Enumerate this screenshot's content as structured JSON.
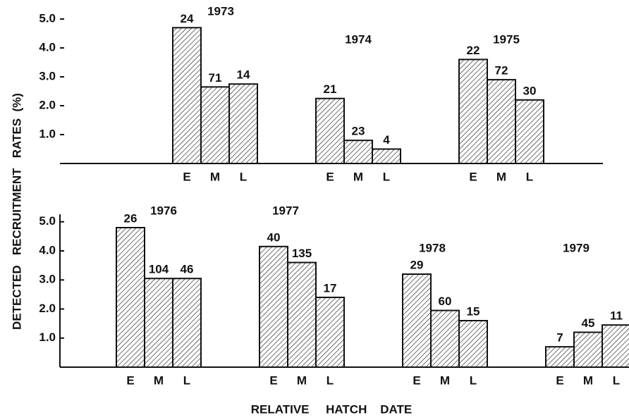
{
  "ylabel": "DETECTED   RECRUITMENT   RATES  (%)",
  "xlabel": "RELATIVE     HATCH    DATE",
  "chart_data": [
    {
      "type": "bar",
      "ylim": [
        0,
        5.5
      ],
      "yticks": [
        {
          "value": 1,
          "label": "1.0"
        },
        {
          "value": 2,
          "label": "2.0"
        },
        {
          "value": 3,
          "label": "3.0"
        },
        {
          "value": 4,
          "label": "4.0"
        },
        {
          "value": 5,
          "label": "5.0"
        }
      ],
      "categories": [
        "E",
        "M",
        "L"
      ],
      "groups": [
        {
          "label": "1973",
          "values": [
            4.7,
            2.65,
            2.75
          ],
          "n": [
            24,
            71,
            14
          ]
        },
        {
          "label": "1974",
          "values": [
            2.25,
            0.8,
            0.5
          ],
          "n": [
            21,
            23,
            4
          ]
        },
        {
          "label": "1975",
          "values": [
            3.6,
            2.9,
            2.2
          ],
          "n": [
            22,
            72,
            30
          ]
        }
      ]
    },
    {
      "type": "bar",
      "ylim": [
        0,
        5.5
      ],
      "yticks": [
        {
          "value": 1,
          "label": "1.0"
        },
        {
          "value": 2,
          "label": "2.0"
        },
        {
          "value": 3,
          "label": "3.0"
        },
        {
          "value": 4,
          "label": "4.0"
        },
        {
          "value": 5,
          "label": "5.0"
        }
      ],
      "categories": [
        "E",
        "M",
        "L"
      ],
      "groups": [
        {
          "label": "1976",
          "values": [
            4.8,
            3.05,
            3.05
          ],
          "n": [
            26,
            104,
            46
          ]
        },
        {
          "label": "1977",
          "values": [
            4.15,
            3.6,
            2.4
          ],
          "n": [
            40,
            135,
            17
          ]
        },
        {
          "label": "1978",
          "values": [
            3.2,
            1.95,
            1.6
          ],
          "n": [
            29,
            60,
            15
          ]
        },
        {
          "label": "1979",
          "values": [
            0.7,
            1.2,
            1.45
          ],
          "n": [
            7,
            45,
            11
          ]
        }
      ]
    }
  ]
}
